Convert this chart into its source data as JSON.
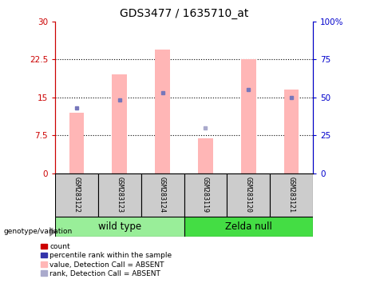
{
  "title": "GDS3477 / 1635710_at",
  "samples": [
    "GSM283122",
    "GSM283123",
    "GSM283124",
    "GSM283119",
    "GSM283120",
    "GSM283121"
  ],
  "pink_bar_values": [
    12.0,
    19.5,
    24.5,
    7.0,
    22.5,
    16.5
  ],
  "blue_marker_values": [
    13.0,
    14.5,
    16.0,
    null,
    16.5,
    15.0
  ],
  "absent_rank_values": [
    null,
    null,
    null,
    9.0,
    null,
    null
  ],
  "ylim_left": [
    0,
    30
  ],
  "ylim_right": [
    0,
    100
  ],
  "yticks_left": [
    0,
    7.5,
    15,
    22.5,
    30
  ],
  "yticks_right": [
    0,
    25,
    50,
    75,
    100
  ],
  "ytick_labels_left": [
    "0",
    "7.5",
    "15",
    "22.5",
    "30"
  ],
  "ytick_labels_right": [
    "0",
    "25",
    "50",
    "75",
    "100%"
  ],
  "pink_color": "#FFB6B6",
  "blue_marker_color": "#7777BB",
  "absent_rank_color": "#AAAACC",
  "red_color": "#CC0000",
  "blue_color": "#0000CC",
  "group_info": [
    {
      "label": "wild type",
      "start": 0,
      "end": 2,
      "color": "#99EE99"
    },
    {
      "label": "Zelda null",
      "start": 3,
      "end": 5,
      "color": "#44DD44"
    }
  ],
  "legend_items": [
    {
      "label": "count",
      "color": "#CC0000"
    },
    {
      "label": "percentile rank within the sample",
      "color": "#3333AA"
    },
    {
      "label": "value, Detection Call = ABSENT",
      "color": "#FFB6B6"
    },
    {
      "label": "rank, Detection Call = ABSENT",
      "color": "#AAAACC"
    }
  ],
  "bar_width": 0.35,
  "sample_box_color": "#CCCCCC",
  "genotype_label": "genotype/variation"
}
